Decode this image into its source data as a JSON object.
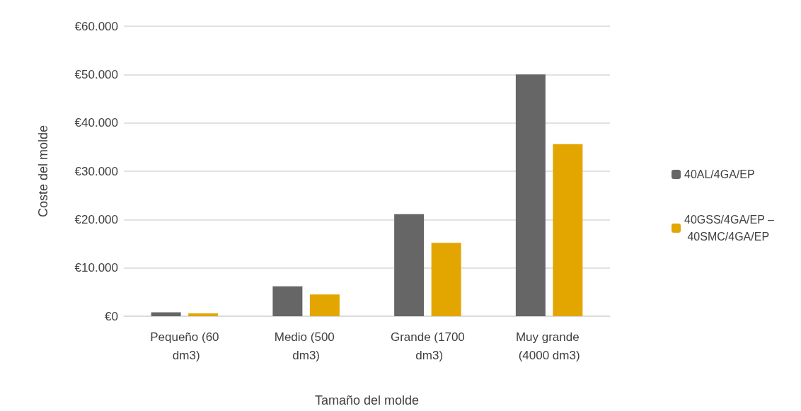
{
  "chart_data": {
    "type": "bar",
    "xlabel": "Tamaño del molde",
    "ylabel": "Coste del molde",
    "categories": [
      "Pequeño (60 dm3)",
      "Medio (500 dm3)",
      "Grande (1700 dm3)",
      "Muy grande (4000 dm3)"
    ],
    "series": [
      {
        "name": "40AL/4GA/EP",
        "color": "#666666",
        "values": [
          800,
          6200,
          21100,
          50000
        ]
      },
      {
        "name": "40GSS/4GA/EP – 40SMC/4GA/EP",
        "color": "#e3a600",
        "values": [
          600,
          4500,
          15200,
          35600
        ]
      }
    ],
    "ylim": [
      0,
      60000
    ],
    "yticks": [
      {
        "value": 0,
        "label": "€0"
      },
      {
        "value": 10000,
        "label": "€10.000"
      },
      {
        "value": 20000,
        "label": "€20.000"
      },
      {
        "value": 30000,
        "label": "€30.000"
      },
      {
        "value": 40000,
        "label": "€40.000"
      },
      {
        "value": 50000,
        "label": "€50.000"
      },
      {
        "value": 60000,
        "label": "€60.000"
      }
    ],
    "grid": "y",
    "legend": "right"
  }
}
